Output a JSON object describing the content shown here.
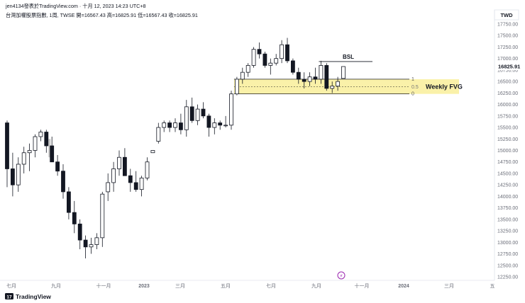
{
  "header": {
    "title_line": "jen4134發表於TradingView.com · 十月 12, 2023 14:23 UTC+8",
    "symbol_line": "台灣加權股票指數, 1周, TWSE  開=16567.43  高=16825.91  低=16567.43  收=16825.91"
  },
  "footer": {
    "brand": "TradingView",
    "logo_mark": "17"
  },
  "colors": {
    "up_fill": "#ffffff",
    "down_fill": "#131722",
    "wick": "#131722",
    "fvg_zone": "#f9ef9a",
    "fvg_line": "#1e1e1e",
    "last_candle_up": "#a8e6bf",
    "last_candle_down": "#c8c8c8",
    "event_icon": "#9c27b0",
    "axis_text": "#6a6d78"
  },
  "chart_data": {
    "type": "candlestick",
    "currency": "TWD",
    "last_price_label": "16825.91",
    "ylim": [
      12250,
      17750
    ],
    "y_ticks": [
      "17750.00",
      "17500.00",
      "17250.00",
      "17000.00",
      "16750.00",
      "16500.00",
      "16250.00",
      "16000.00",
      "15750.00",
      "15500.00",
      "15250.00",
      "15000.00",
      "14750.00",
      "14500.00",
      "14250.00",
      "14000.00",
      "13750.00",
      "13500.00",
      "13250.00",
      "13000.00",
      "12750.00",
      "12500.00",
      "12250.00"
    ],
    "x_ticks": [
      "七月",
      "九月",
      "十一月",
      "2023",
      "三月",
      "五月",
      "七月",
      "九月",
      "十一月",
      "2024",
      "三月",
      "五"
    ],
    "annotations": {
      "bsl_label": "BSL",
      "bsl_level": 16935,
      "fvg_label": "Weekly FVG",
      "fvg_top": 16550,
      "fvg_bottom": 16230,
      "fvg_mid": 16390,
      "fvg_fib_labels": [
        "1",
        "0.5",
        "0"
      ]
    },
    "candles": [
      [
        15600,
        15650,
        14200,
        14600
      ],
      [
        14600,
        14950,
        14000,
        14250
      ],
      [
        14250,
        14850,
        14100,
        14700
      ],
      [
        14700,
        15080,
        14500,
        14950
      ],
      [
        14950,
        15150,
        14550,
        15000
      ],
      [
        15000,
        15350,
        14850,
        15300
      ],
      [
        15300,
        15450,
        15200,
        15400
      ],
      [
        15400,
        15450,
        14950,
        15100
      ],
      [
        15100,
        15300,
        14800,
        14750
      ],
      [
        14750,
        14900,
        14450,
        14550
      ],
      [
        14550,
        14700,
        13950,
        14100
      ],
      [
        14100,
        14200,
        13500,
        13650
      ],
      [
        13650,
        13900,
        13200,
        13400
      ],
      [
        13400,
        13500,
        12850,
        13050
      ],
      [
        13050,
        13150,
        12650,
        12900
      ],
      [
        12900,
        13100,
        12750,
        12950
      ],
      [
        12950,
        13200,
        12850,
        13100
      ],
      [
        13100,
        14100,
        12900,
        14050
      ],
      [
        14100,
        14500,
        13900,
        14300
      ],
      [
        14300,
        14750,
        14100,
        14600
      ],
      [
        14600,
        15000,
        14450,
        14850
      ],
      [
        14850,
        15050,
        14500,
        14450
      ],
      [
        14450,
        14600,
        14100,
        14300
      ],
      [
        14300,
        14550,
        14100,
        14150
      ],
      [
        14150,
        14450,
        14000,
        14400
      ],
      [
        14400,
        14850,
        14350,
        14750
      ],
      [
        14950,
        15000,
        14950,
        15000
      ],
      [
        15200,
        15600,
        15150,
        15500
      ],
      [
        15500,
        15650,
        15400,
        15600
      ],
      [
        15600,
        15650,
        15400,
        15500
      ],
      [
        15500,
        15700,
        15400,
        15600
      ],
      [
        15600,
        15800,
        15350,
        15450
      ],
      [
        15450,
        16100,
        15300,
        15950
      ],
      [
        15950,
        16150,
        15600,
        15650
      ],
      [
        15650,
        16000,
        15550,
        15900
      ],
      [
        15900,
        16050,
        15700,
        15750
      ],
      [
        15750,
        15800,
        15300,
        15500
      ],
      [
        15500,
        15700,
        15350,
        15600
      ],
      [
        15600,
        15650,
        15450,
        15550
      ],
      [
        15550,
        15750,
        15500,
        15550
      ],
      [
        15550,
        16300,
        15450,
        16230
      ],
      [
        16230,
        16600,
        16200,
        16550
      ],
      [
        16550,
        16800,
        16450,
        16700
      ],
      [
        16700,
        16900,
        16600,
        16850
      ],
      [
        16850,
        17250,
        16800,
        17200
      ],
      [
        17200,
        17350,
        17000,
        17100
      ],
      [
        17100,
        17150,
        16800,
        16850
      ],
      [
        16850,
        17000,
        16650,
        16900
      ],
      [
        16900,
        17100,
        16850,
        17000
      ],
      [
        17000,
        17400,
        16900,
        17300
      ],
      [
        17300,
        17450,
        16900,
        16950
      ],
      [
        16950,
        17000,
        16650,
        16700
      ],
      [
        16700,
        16800,
        16450,
        16550
      ],
      [
        16550,
        16700,
        16350,
        16500
      ],
      [
        16500,
        16700,
        16400,
        16600
      ],
      [
        16600,
        16800,
        16450,
        16550
      ],
      [
        16550,
        16950,
        16450,
        16850
      ],
      [
        16850,
        16900,
        16300,
        16350
      ],
      [
        16350,
        16500,
        16250,
        16400
      ],
      [
        16400,
        16600,
        16300,
        16500
      ],
      [
        16567.43,
        16825.91,
        16567.43,
        16825.91
      ]
    ]
  }
}
